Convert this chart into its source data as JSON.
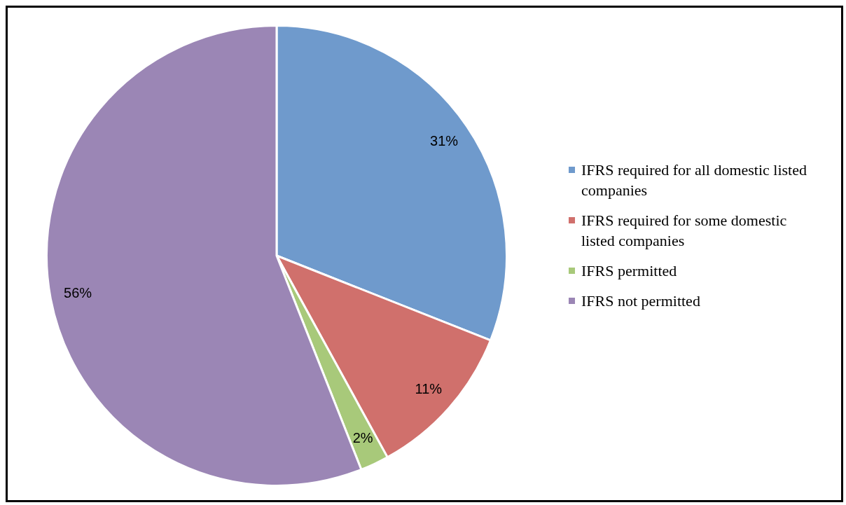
{
  "chart_data": {
    "type": "pie",
    "categories": [
      "IFRS required for all domestic listed companies",
      "IFRS required for some domestic listed companies",
      "IFRS permitted",
      "IFRS not permitted"
    ],
    "values": [
      31,
      11,
      2,
      56
    ],
    "colors": [
      "#6f9acc",
      "#d0706c",
      "#a8c97a",
      "#9b86b5"
    ],
    "value_labels": [
      "31%",
      "11%",
      "2%",
      "56%"
    ],
    "legend": "right"
  }
}
